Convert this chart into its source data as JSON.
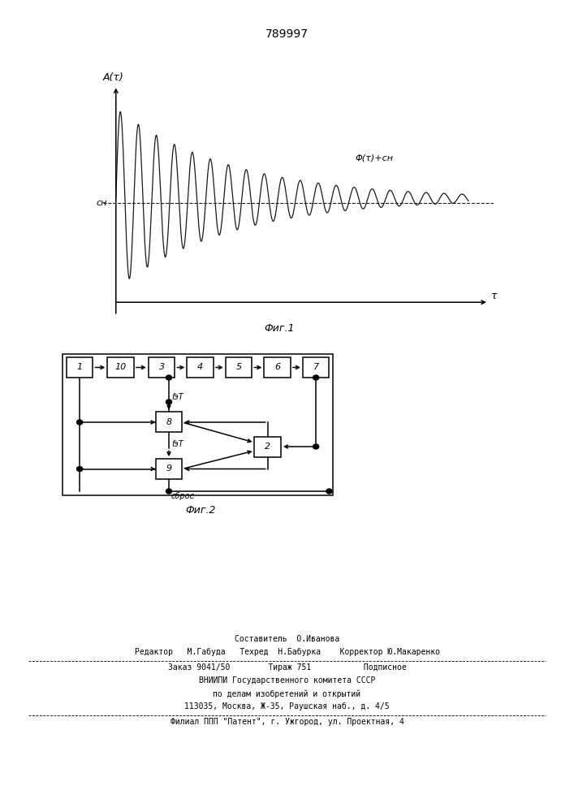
{
  "title": "789997",
  "fig1_label": "Фиг.1",
  "fig2_label": "Фиг.2",
  "ylabel": "A(τ)",
  "xlabel": "τ",
  "cn_label": "cн",
  "phi_label": "Φ(τ)+cн",
  "line_color": "#1a1a1a",
  "block_labels": [
    "1",
    "10",
    "3",
    "4",
    "5",
    "6",
    "7"
  ],
  "block8_label": "8",
  "block9_label": "9",
  "block2_label": "2",
  "fzt_label": "fэT",
  "sbros_label": "сброс",
  "footer_line1": "Составитель  О.Иванова",
  "footer_line2": "Редактор   М.Габуда   Техред  Н.Бабурка    Корректор Ю.Макаренко",
  "footer_line3": "Заказ 9041/50        Тираж 751           Подписное",
  "footer_line4": "ВНИИПИ Государственного комитета СССР",
  "footer_line5": "по делам изобретений и открытий",
  "footer_line6": "113035, Москва, Ж-35, Раушская наб., д. 4/5",
  "footer_line7": "Филиал ППП \"Патент\", г. Ужгород, ул. Проектная, 4"
}
